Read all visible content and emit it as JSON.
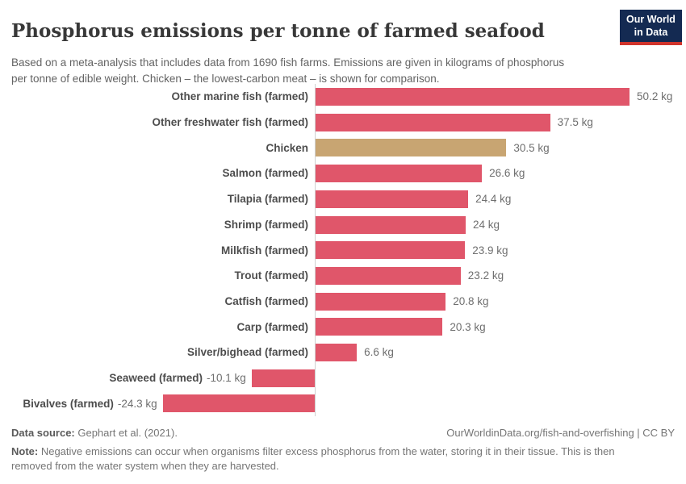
{
  "header": {
    "title": "Phosphorus emissions per tonne of farmed seafood",
    "subtitle": "Based on a meta-analysis that includes data from 1690 fish farms. Emissions are given in kilograms of phosphorus per tonne of edible weight. Chicken – the lowest-carbon meat – is shown for comparison.",
    "logo": {
      "line1": "Our World",
      "line2": "in Data",
      "bg_color": "#142a52",
      "accent_color": "#d0342c"
    }
  },
  "chart_data": {
    "type": "bar",
    "orientation": "horizontal",
    "title": "Phosphorus emissions per tonne of farmed seafood",
    "unit": "kg",
    "categories": [
      "Other marine fish (farmed)",
      "Other freshwater fish (farmed)",
      "Chicken",
      "Salmon (farmed)",
      "Tilapia (farmed)",
      "Shrimp (farmed)",
      "Milkfish (farmed)",
      "Trout (farmed)",
      "Catfish (farmed)",
      "Carp (farmed)",
      "Silver/bighead (farmed)",
      "Seaweed (farmed)",
      "Bivalves (farmed)"
    ],
    "values": [
      50.2,
      37.5,
      30.5,
      26.6,
      24.4,
      24,
      23.9,
      23.2,
      20.8,
      20.3,
      6.6,
      -10.1,
      -24.3
    ],
    "value_labels": [
      "50.2 kg",
      "37.5 kg",
      "30.5 kg",
      "26.6 kg",
      "24.4 kg",
      "24 kg",
      "23.9 kg",
      "23.2 kg",
      "20.8 kg",
      "20.3 kg",
      "6.6 kg",
      "-10.1 kg",
      "-24.3 kg"
    ],
    "highlight_category": "Chicken",
    "colors": {
      "bar_default": "#e0566a",
      "bar_highlight": "#c8a572",
      "axis_line": "#cfcfcf"
    },
    "xlim": [
      -24.3,
      50.2
    ],
    "grid": false,
    "zero_line": true,
    "legend": "none"
  },
  "footer": {
    "datasource_label": "Data source:",
    "datasource_value": " Gephart et al. (2021).",
    "link": "OurWorldinData.org/fish-and-overfishing | CC BY",
    "note_label": "Note:",
    "note_text": " Negative emissions can occur when organisms filter excess phosphorus from the water, storing it in their tissue. This is then removed from the water system when they are harvested."
  }
}
